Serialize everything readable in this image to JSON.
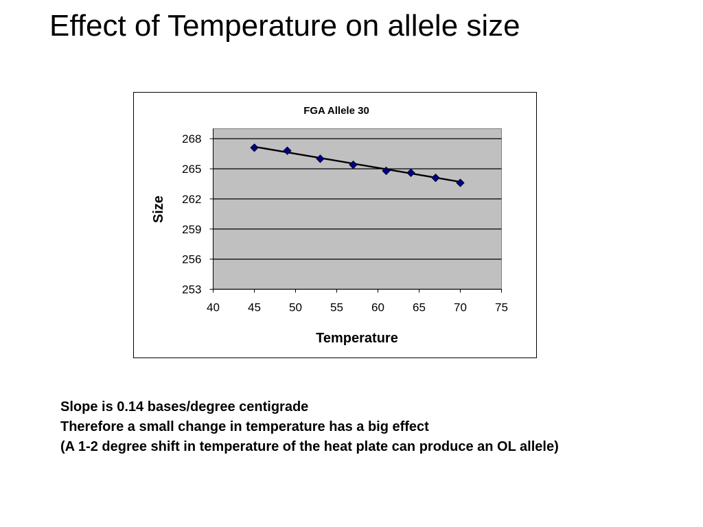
{
  "slide": {
    "title": "Effect of Temperature on allele size"
  },
  "notes": [
    "Slope is 0.14 bases/degree centigrade",
    "Therefore a small change in temperature has a big effect",
    "(A 1-2 degree shift in temperature of the heat plate can produce an OL allele)"
  ],
  "chart_data": {
    "type": "scatter",
    "title": "FGA Allele 30",
    "xlabel": "Temperature",
    "ylabel": "Size",
    "xlim": [
      40,
      75
    ],
    "ylim": [
      253,
      269
    ],
    "xticks": [
      40,
      45,
      50,
      55,
      60,
      65,
      70,
      75
    ],
    "yticks": [
      253,
      256,
      259,
      262,
      265,
      268
    ],
    "grid": "horizontal",
    "plot_background": "#c0c0c0",
    "marker_color": "#000080",
    "trendline": {
      "type": "linear",
      "x_range": [
        45,
        70
      ],
      "y_range": [
        267.2,
        263.7
      ],
      "color": "#000000"
    },
    "series": [
      {
        "marker": "diamond",
        "x": [
          45,
          49,
          53,
          57,
          61,
          64,
          67,
          70
        ],
        "y": [
          267.1,
          266.8,
          266.0,
          265.4,
          264.8,
          264.6,
          264.1,
          263.6
        ]
      }
    ]
  }
}
